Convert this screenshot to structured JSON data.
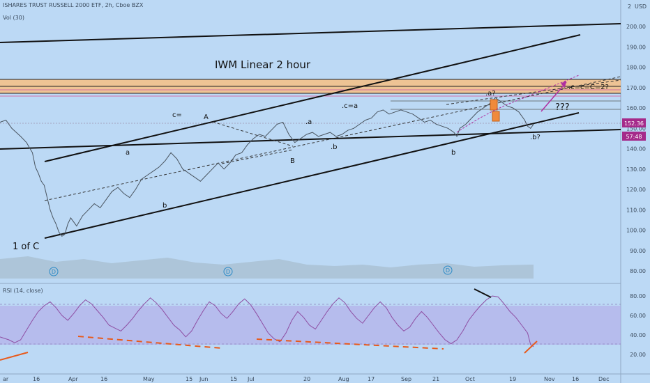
{
  "header": {
    "symbol_line": "ISHARES TRUST RUSSELL 2000 ETF, 2h, Cboe BZX",
    "volume_label": "Vol (30)",
    "currency": "USD",
    "corner_value": "2",
    "rsi_label": "RSI (14, close)"
  },
  "chart_data": {
    "type": "line",
    "title": "IWM  Linear 2 hour",
    "price_axis": {
      "ticks": [
        "200.00",
        "190.00",
        "180.00",
        "170.00",
        "160.00",
        "150.00",
        "140.00",
        "130.00",
        "120.00",
        "110.00",
        "100.00",
        "90.00",
        "80.00"
      ],
      "ylim": [
        75,
        207
      ]
    },
    "rsi_axis": {
      "ticks": [
        "80.00",
        "60.00",
        "40.00",
        "20.00"
      ],
      "ylim": [
        10,
        90
      ],
      "band": [
        30,
        70
      ]
    },
    "x_ticks": [
      "ar",
      "16",
      "Apr",
      "16",
      "May",
      "15",
      "Jun",
      "15",
      "Jul",
      "20",
      "Aug",
      "17",
      "Sep",
      "21",
      "Oct",
      "19",
      "Nov",
      "16",
      "Dec"
    ],
    "price_badge": {
      "value": "152.36",
      "timer": "57:48"
    },
    "annotations": [
      "1  of C",
      "a",
      "b",
      "c=",
      "A",
      "B",
      ".a",
      ".b",
      ".c=a",
      "b",
      ".a?",
      ".b?",
      "???",
      ".c=c=C=2?"
    ],
    "event_marker": "D",
    "price_path": [
      [
        0,
        153
      ],
      [
        4,
        154
      ],
      [
        8,
        150
      ],
      [
        14,
        146
      ],
      [
        18,
        143
      ],
      [
        22,
        138
      ],
      [
        24,
        131
      ],
      [
        26,
        128
      ],
      [
        28,
        124
      ],
      [
        30,
        122
      ],
      [
        32,
        116
      ],
      [
        34,
        110
      ],
      [
        36,
        106
      ],
      [
        38,
        103
      ],
      [
        40,
        99
      ],
      [
        42,
        97
      ],
      [
        44,
        98
      ],
      [
        46,
        103
      ],
      [
        48,
        106
      ],
      [
        50,
        104
      ],
      [
        52,
        102
      ],
      [
        56,
        107
      ],
      [
        60,
        110
      ],
      [
        64,
        113
      ],
      [
        68,
        111
      ],
      [
        72,
        115
      ],
      [
        76,
        119
      ],
      [
        80,
        121
      ],
      [
        84,
        118
      ],
      [
        88,
        116
      ],
      [
        92,
        120
      ],
      [
        96,
        125
      ],
      [
        100,
        127
      ],
      [
        104,
        129
      ],
      [
        108,
        131
      ],
      [
        112,
        134
      ],
      [
        116,
        138
      ],
      [
        120,
        135
      ],
      [
        124,
        130
      ],
      [
        128,
        128
      ],
      [
        132,
        126
      ],
      [
        136,
        124
      ],
      [
        140,
        127
      ],
      [
        144,
        130
      ],
      [
        148,
        133
      ],
      [
        152,
        130
      ],
      [
        156,
        133
      ],
      [
        160,
        137
      ],
      [
        164,
        138
      ],
      [
        168,
        142
      ],
      [
        172,
        145
      ],
      [
        176,
        147
      ],
      [
        180,
        146
      ],
      [
        184,
        149
      ],
      [
        188,
        152
      ],
      [
        192,
        153
      ],
      [
        196,
        147
      ],
      [
        200,
        143
      ],
      [
        204,
        145
      ],
      [
        208,
        147
      ],
      [
        212,
        148
      ],
      [
        216,
        146
      ],
      [
        220,
        147
      ],
      [
        224,
        148
      ],
      [
        228,
        146
      ],
      [
        232,
        147
      ],
      [
        236,
        149
      ],
      [
        240,
        150
      ],
      [
        244,
        152
      ],
      [
        248,
        154
      ],
      [
        252,
        155
      ],
      [
        256,
        158
      ],
      [
        260,
        159
      ],
      [
        264,
        157
      ],
      [
        268,
        158
      ],
      [
        272,
        159
      ],
      [
        276,
        158
      ],
      [
        280,
        157
      ],
      [
        284,
        155
      ],
      [
        288,
        153
      ],
      [
        292,
        154
      ],
      [
        296,
        152
      ],
      [
        300,
        151
      ],
      [
        304,
        150
      ],
      [
        308,
        148
      ],
      [
        310,
        146
      ],
      [
        312,
        150
      ],
      [
        316,
        152
      ],
      [
        320,
        155
      ],
      [
        324,
        158
      ],
      [
        328,
        160
      ],
      [
        332,
        162
      ],
      [
        336,
        165
      ],
      [
        340,
        163
      ],
      [
        344,
        161
      ],
      [
        348,
        160
      ],
      [
        352,
        158
      ],
      [
        356,
        154
      ],
      [
        358,
        151
      ],
      [
        360,
        150
      ],
      [
        362,
        152
      ]
    ],
    "rsi_path": [
      [
        0,
        38
      ],
      [
        6,
        35
      ],
      [
        10,
        32
      ],
      [
        14,
        35
      ],
      [
        18,
        45
      ],
      [
        22,
        55
      ],
      [
        26,
        64
      ],
      [
        30,
        70
      ],
      [
        34,
        74
      ],
      [
        38,
        68
      ],
      [
        42,
        60
      ],
      [
        46,
        55
      ],
      [
        50,
        62
      ],
      [
        54,
        70
      ],
      [
        58,
        76
      ],
      [
        62,
        72
      ],
      [
        66,
        65
      ],
      [
        70,
        58
      ],
      [
        74,
        50
      ],
      [
        78,
        47
      ],
      [
        82,
        44
      ],
      [
        86,
        50
      ],
      [
        90,
        57
      ],
      [
        94,
        65
      ],
      [
        98,
        72
      ],
      [
        102,
        78
      ],
      [
        106,
        73
      ],
      [
        110,
        66
      ],
      [
        114,
        58
      ],
      [
        118,
        50
      ],
      [
        122,
        45
      ],
      [
        126,
        38
      ],
      [
        130,
        44
      ],
      [
        134,
        55
      ],
      [
        138,
        65
      ],
      [
        142,
        74
      ],
      [
        146,
        70
      ],
      [
        150,
        62
      ],
      [
        154,
        57
      ],
      [
        158,
        64
      ],
      [
        162,
        72
      ],
      [
        166,
        77
      ],
      [
        170,
        71
      ],
      [
        174,
        62
      ],
      [
        178,
        52
      ],
      [
        182,
        42
      ],
      [
        186,
        36
      ],
      [
        190,
        33
      ],
      [
        194,
        42
      ],
      [
        198,
        55
      ],
      [
        202,
        64
      ],
      [
        206,
        58
      ],
      [
        210,
        50
      ],
      [
        214,
        46
      ],
      [
        218,
        55
      ],
      [
        222,
        64
      ],
      [
        226,
        72
      ],
      [
        230,
        78
      ],
      [
        234,
        73
      ],
      [
        238,
        64
      ],
      [
        242,
        57
      ],
      [
        246,
        52
      ],
      [
        250,
        60
      ],
      [
        254,
        68
      ],
      [
        258,
        74
      ],
      [
        262,
        68
      ],
      [
        266,
        58
      ],
      [
        270,
        50
      ],
      [
        274,
        44
      ],
      [
        278,
        48
      ],
      [
        282,
        57
      ],
      [
        286,
        64
      ],
      [
        290,
        58
      ],
      [
        294,
        50
      ],
      [
        298,
        42
      ],
      [
        302,
        35
      ],
      [
        306,
        31
      ],
      [
        310,
        35
      ],
      [
        314,
        44
      ],
      [
        318,
        55
      ],
      [
        322,
        63
      ],
      [
        326,
        70
      ],
      [
        330,
        76
      ],
      [
        334,
        80
      ],
      [
        338,
        79
      ],
      [
        342,
        72
      ],
      [
        346,
        64
      ],
      [
        350,
        58
      ],
      [
        354,
        50
      ],
      [
        358,
        42
      ],
      [
        360,
        30
      ],
      [
        362,
        28
      ]
    ]
  }
}
